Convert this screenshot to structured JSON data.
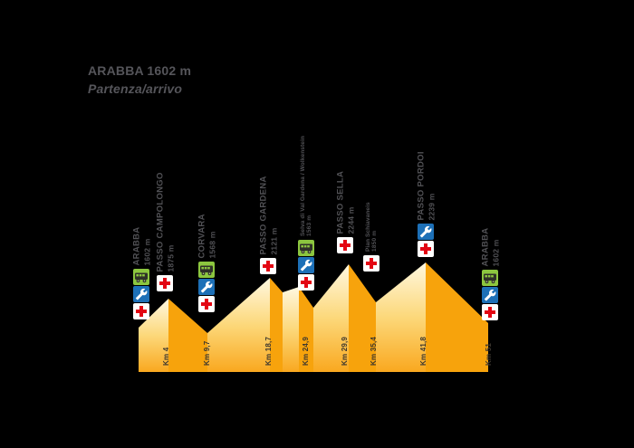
{
  "title": {
    "line1": "ARABBA 1602 m",
    "line2": "Partenza/arrivo"
  },
  "waypoints": [
    {
      "slug": "arabba-start",
      "name": "ARABBA",
      "elevation": "1602 m",
      "services": [
        "shuttle",
        "mechanic",
        "first-aid"
      ],
      "small": false
    },
    {
      "slug": "passo-campolongo",
      "name": "PASSO CAMPOLONGO",
      "elevation": "1875 m",
      "services": [
        "first-aid"
      ],
      "small": false
    },
    {
      "slug": "corvara",
      "name": "CORVARA",
      "elevation": "1568 m",
      "services": [
        "shuttle",
        "mechanic",
        "first-aid"
      ],
      "small": false
    },
    {
      "slug": "passo-gardena",
      "name": "PASSO GARDENA",
      "elevation": "2121 m",
      "services": [
        "first-aid"
      ],
      "small": false
    },
    {
      "slug": "selva-wolkenstein",
      "name": "Selva di Val Gardena / Wolkenstein",
      "elevation": "1563 m",
      "services": [
        "shuttle",
        "mechanic",
        "first-aid"
      ],
      "small": true
    },
    {
      "slug": "passo-sella",
      "name": "PASSO SELLA",
      "elevation": "2244 m",
      "services": [
        "first-aid"
      ],
      "small": false
    },
    {
      "slug": "pian-schiavaneis",
      "name": "Pian Schiavaneis",
      "elevation": "1850 m",
      "services": [
        "first-aid"
      ],
      "small": true
    },
    {
      "slug": "passo-pordoi",
      "name": "PASSO PORDOI",
      "elevation": "2239 m",
      "services": [
        "mechanic",
        "first-aid"
      ],
      "small": false
    },
    {
      "slug": "arabba-finish",
      "name": "ARABBA",
      "elevation": "1602 m",
      "services": [
        "shuttle",
        "mechanic",
        "first-aid"
      ],
      "small": false
    }
  ],
  "km_markers": [
    "Km 4",
    "Km 9,7",
    "Km 18,7",
    "Km 24,9",
    "Km 29,9",
    "Km 35,4",
    "Km 41,8",
    "Km 51"
  ],
  "service_icon_names": {
    "shuttle": "shuttle-bus-icon",
    "mechanic": "wrench-icon",
    "first-aid": "first-aid-cross-icon"
  },
  "colors": {
    "background": "#000000",
    "profile_light_top": "#FFF8E0",
    "profile_light_mid": "#FCD87A",
    "profile_light_bottom": "#F9A81F",
    "profile_dark": "#F7A30C",
    "cross_red": "#E30613",
    "wrench_blue": "#1D70B7",
    "bus_green": "#8CC63F",
    "bus_dark": "#2F3128",
    "label_gray": "#515155",
    "km_text": "#3C372F"
  },
  "chart_data": {
    "type": "area",
    "title": "ARABBA 1602 m — Partenza/arrivo",
    "x": [
      0,
      4,
      9.7,
      18.7,
      24.9,
      29.9,
      35.4,
      41.8,
      51
    ],
    "y": [
      1602,
      1875,
      1568,
      2121,
      1563,
      2244,
      1850,
      2239,
      1602
    ],
    "point_labels": [
      "Arabba",
      "Passo Campolongo",
      "Corvara",
      "Passo Gardena",
      "Selva di Val Gardena / Wolkenstein",
      "Passo Sella",
      "Pian Schiavaneis",
      "Passo Pordoi",
      "Arabba"
    ],
    "xlabel": "Km",
    "ylabel": "m",
    "xlim": [
      0,
      51
    ],
    "ylim": [
      1400,
      2300
    ],
    "grid": false,
    "legend": "none"
  }
}
